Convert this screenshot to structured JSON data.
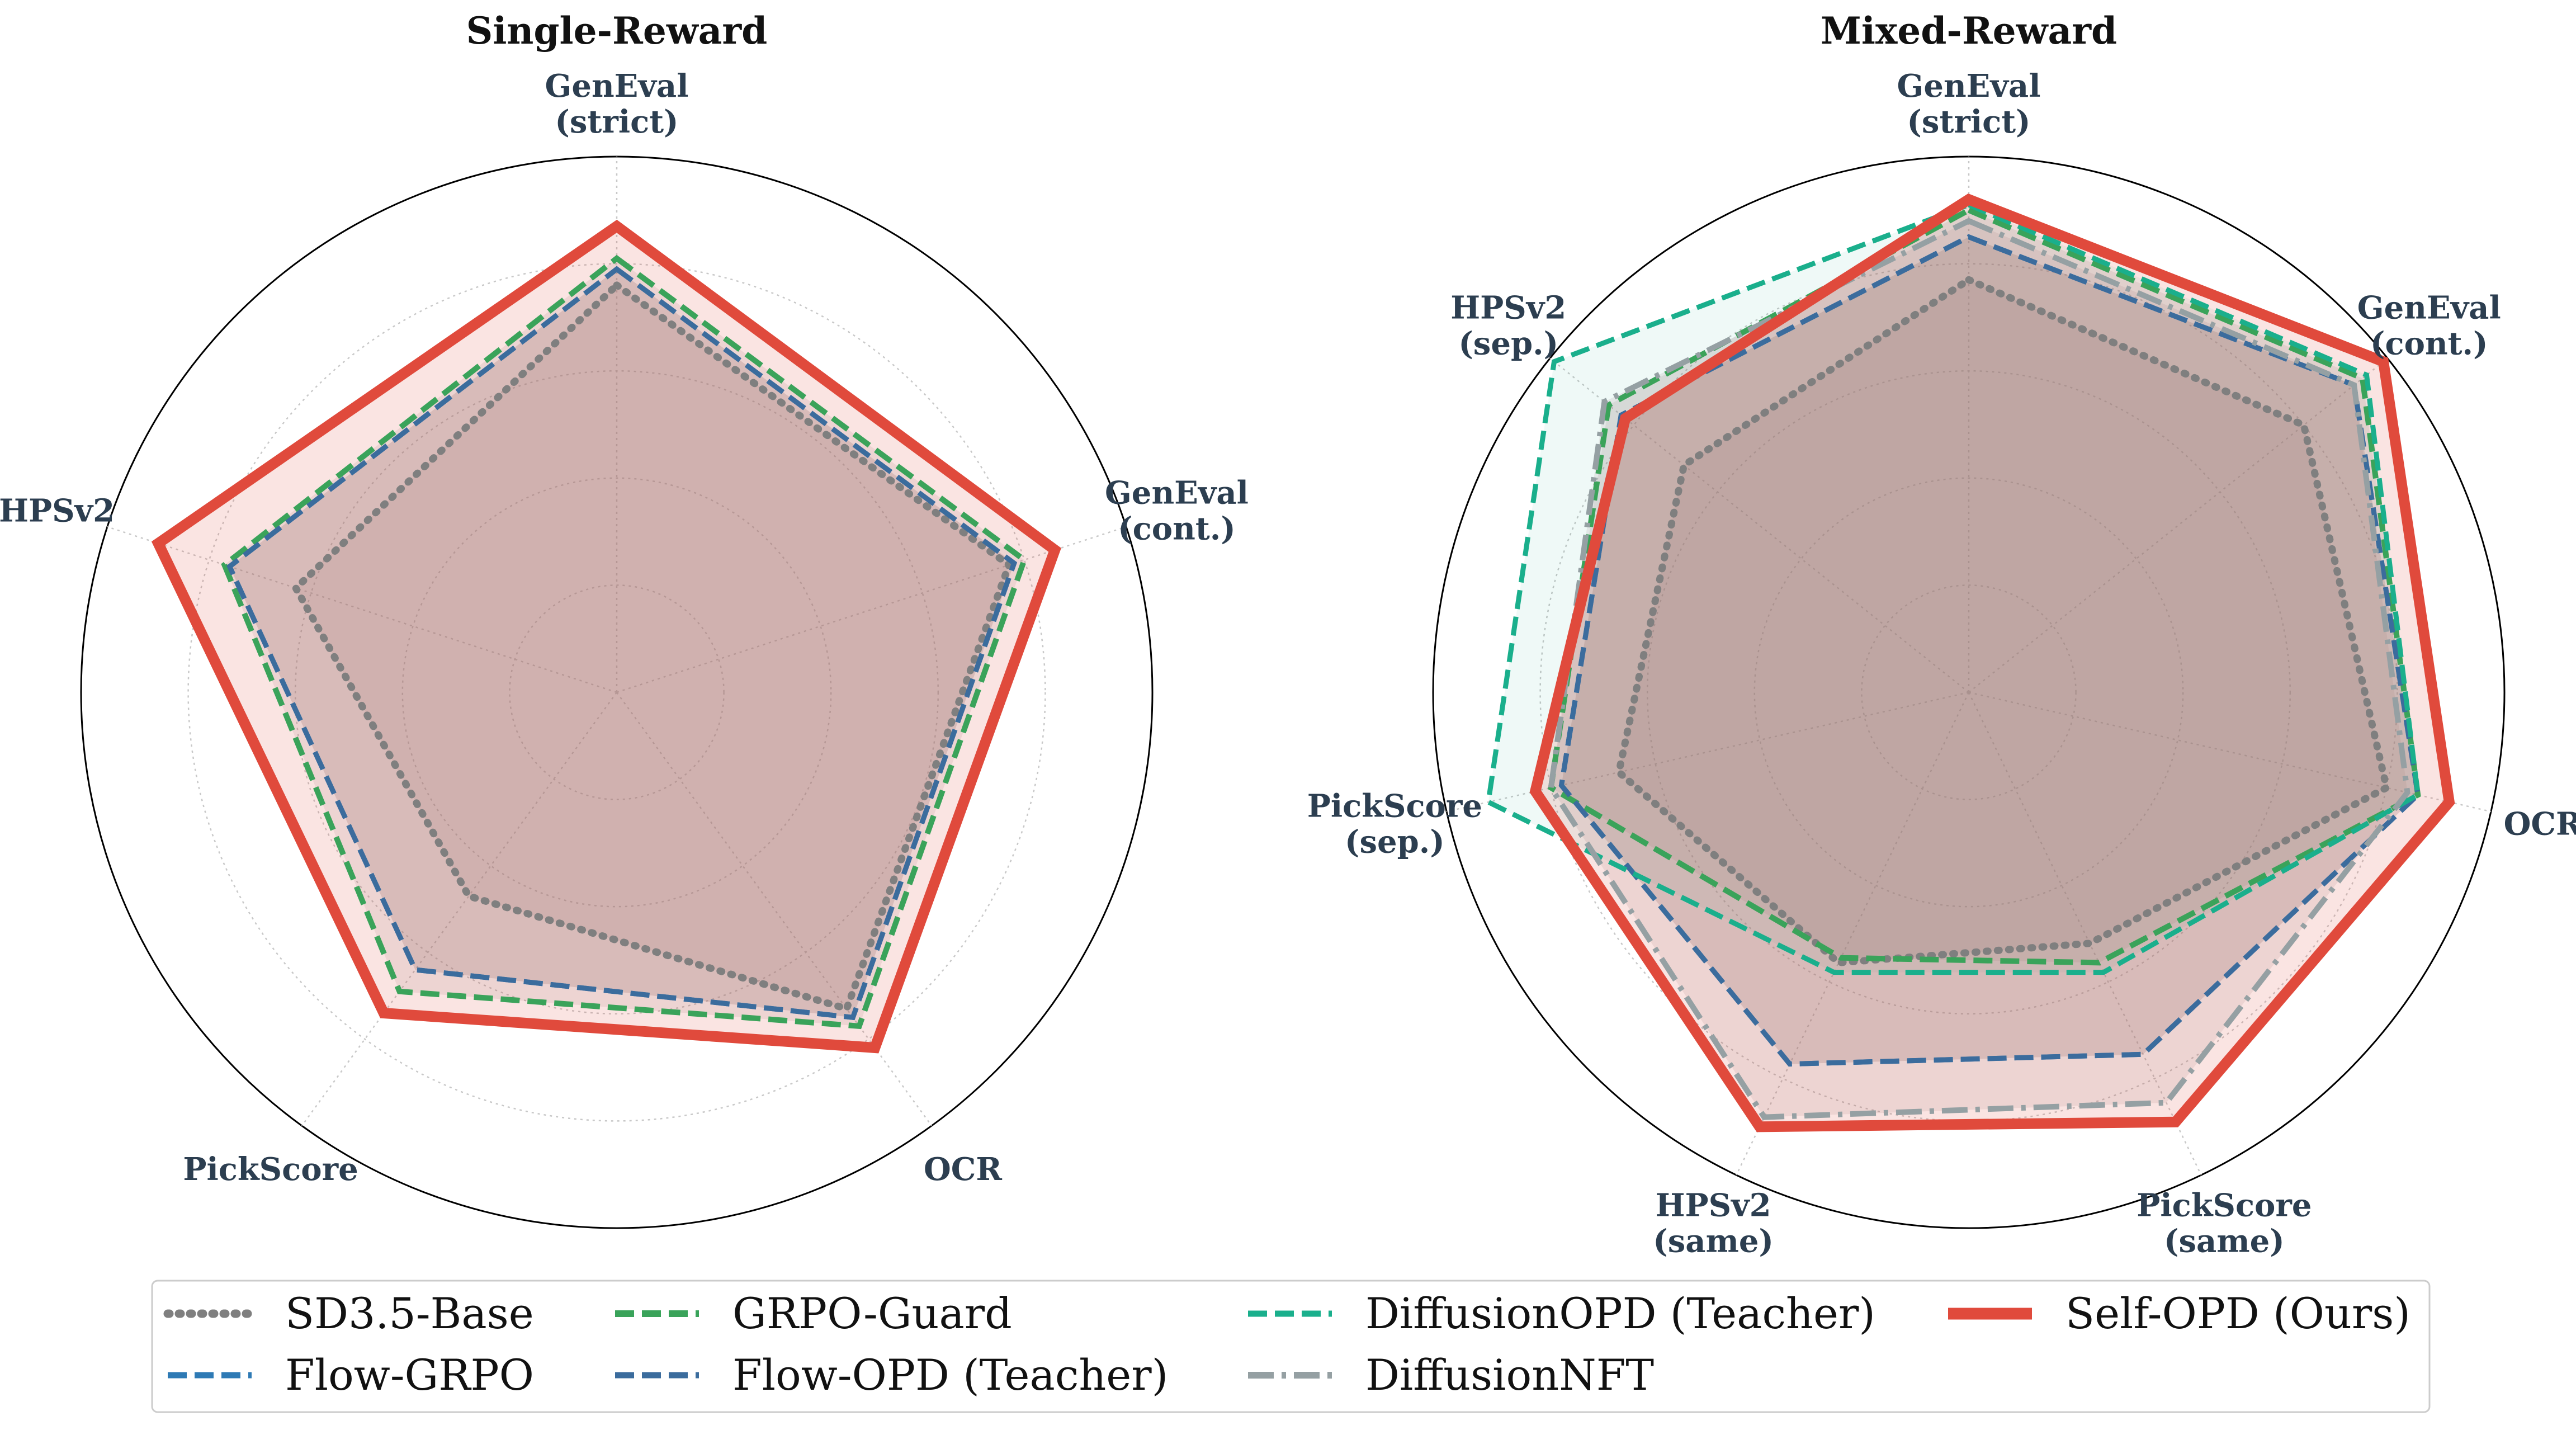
{
  "chart_data": [
    {
      "type": "radar",
      "title": "Single-Reward",
      "axes": [
        [
          "GenEval",
          "(strict)"
        ],
        [
          "GenEval",
          "(cont.)"
        ],
        [
          "OCR"
        ],
        [
          "PickScore"
        ],
        [
          "HPSv2"
        ]
      ],
      "rlim": [
        0,
        1
      ],
      "ring_count": 5,
      "series": [
        {
          "key": "sd35",
          "values": [
            0.76,
            0.77,
            0.73,
            0.47,
            0.63
          ]
        },
        {
          "key": "flowgrpo",
          "values": [
            0.79,
            0.78,
            0.75,
            0.64,
            0.76
          ]
        },
        {
          "key": "grpoguard",
          "values": [
            0.81,
            0.8,
            0.77,
            0.69,
            0.77
          ]
        },
        {
          "key": "flowopd",
          "values": [
            0.79,
            0.78,
            0.75,
            0.64,
            0.76
          ]
        },
        {
          "key": "selfopd",
          "values": [
            0.87,
            0.86,
            0.82,
            0.74,
            0.9
          ]
        }
      ]
    },
    {
      "type": "radar",
      "title": "Mixed-Reward",
      "axes": [
        [
          "GenEval",
          "(strict)"
        ],
        [
          "GenEval",
          "(cont.)"
        ],
        [
          "OCR"
        ],
        [
          "PickScore",
          "(same)"
        ],
        [
          "HPSv2",
          "(same)"
        ],
        [
          "PickScore",
          "(sep.)"
        ],
        [
          "HPSv2",
          "(sep.)"
        ]
      ],
      "rlim": [
        0,
        1
      ],
      "ring_count": 5,
      "series": [
        {
          "key": "sd35",
          "values": [
            0.77,
            0.8,
            0.8,
            0.52,
            0.56,
            0.67,
            0.68
          ]
        },
        {
          "key": "flowgrpo",
          "values": [
            0.85,
            0.92,
            0.86,
            0.75,
            0.77,
            0.78,
            0.83
          ]
        },
        {
          "key": "grpoguard",
          "values": [
            0.9,
            0.94,
            0.86,
            0.56,
            0.55,
            0.8,
            0.86
          ]
        },
        {
          "key": "flowopd",
          "values": [
            0.85,
            0.92,
            0.86,
            0.75,
            0.77,
            0.78,
            0.83
          ]
        },
        {
          "key": "diffopd",
          "values": [
            0.91,
            0.95,
            0.86,
            0.58,
            0.58,
            0.92,
            0.99
          ]
        },
        {
          "key": "diffnft",
          "values": [
            0.88,
            0.92,
            0.84,
            0.85,
            0.88,
            0.8,
            0.87
          ]
        },
        {
          "key": "selfopd",
          "values": [
            0.92,
            0.99,
            0.92,
            0.89,
            0.9,
            0.83,
            0.82
          ]
        }
      ]
    }
  ],
  "legend": {
    "columns": [
      [
        "sd35",
        "flowgrpo"
      ],
      [
        "grpoguard",
        "flowopd"
      ],
      [
        "diffopd",
        "diffnft"
      ],
      [
        "selfopd"
      ]
    ],
    "entries": {
      "sd35": {
        "label": "SD3.5-Base",
        "color": "#7f7f7f",
        "style": "dotted"
      },
      "flowgrpo": {
        "label": "Flow-GRPO",
        "color": "#2e7ab5",
        "style": "dashed"
      },
      "grpoguard": {
        "label": "GRPO-Guard",
        "color": "#3aa35a",
        "style": "dashed"
      },
      "flowopd": {
        "label": "Flow-OPD (Teacher)",
        "color": "#3b6c9d",
        "style": "dashed"
      },
      "diffopd": {
        "label": "DiffusionOPD (Teacher)",
        "color": "#1aaf8c",
        "style": "dashed"
      },
      "diffnft": {
        "label": "DiffusionNFT",
        "color": "#95a0a3",
        "style": "dashdot"
      },
      "selfopd": {
        "label": "Self-OPD (Ours)",
        "color": "#e04a3c",
        "style": "solid"
      }
    }
  }
}
